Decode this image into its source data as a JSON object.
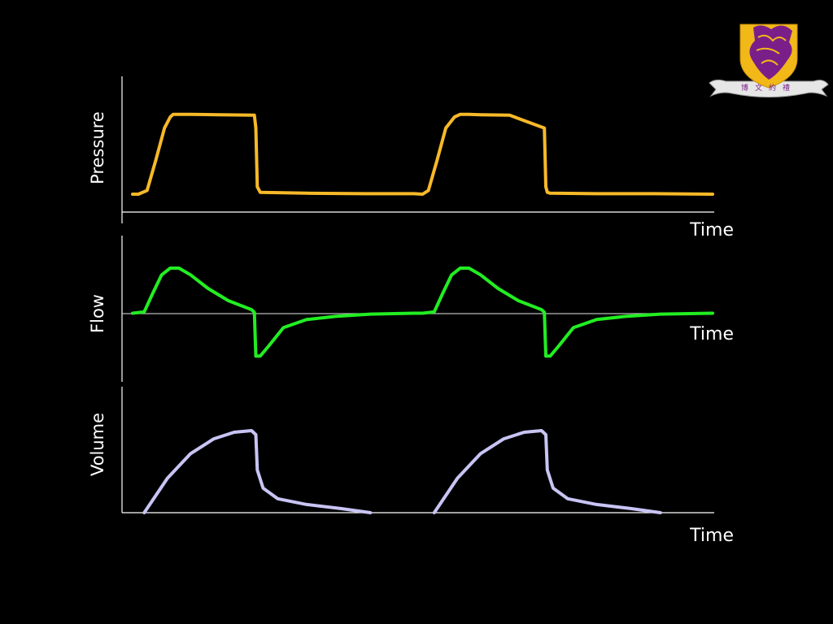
{
  "chart_data": [
    {
      "type": "line",
      "title": "",
      "ylabel": "Pressure",
      "xlabel": "Time",
      "color": "#f7b928",
      "xlim": [
        0,
        2
      ],
      "ylim": [
        0,
        1
      ],
      "grid": false,
      "series": [
        {
          "x": [
            0,
            0.02,
            0.05,
            0.08,
            0.11,
            0.13,
            0.14,
            0.16,
            0.2,
            0.3,
            0.42,
            0.425,
            0.43,
            0.44,
            0.6,
            0.8,
            0.97,
            1.0,
            1.02,
            1.05,
            1.08,
            1.11,
            1.13,
            1.14,
            1.16,
            1.2,
            1.3,
            1.42,
            1.425,
            1.43,
            1.44,
            1.6,
            1.8,
            2.0
          ],
          "y": [
            0.08,
            0.08,
            0.12,
            0.45,
            0.8,
            0.92,
            0.95,
            0.95,
            0.95,
            0.945,
            0.94,
            0.8,
            0.16,
            0.1,
            0.09,
            0.085,
            0.085,
            0.08,
            0.12,
            0.45,
            0.8,
            0.92,
            0.95,
            0.95,
            0.95,
            0.945,
            0.94,
            0.8,
            0.16,
            0.1,
            0.09,
            0.085,
            0.085,
            0.08
          ]
        }
      ]
    },
    {
      "type": "line",
      "title": "",
      "ylabel": "Flow",
      "xlabel": "Time",
      "color": "#22ee22",
      "xlim": [
        0,
        2
      ],
      "ylim": [
        -1,
        1
      ],
      "grid": false,
      "series": [
        {
          "x": [
            0,
            0.04,
            0.07,
            0.1,
            0.13,
            0.16,
            0.2,
            0.26,
            0.33,
            0.41,
            0.42,
            0.425,
            0.44,
            0.47,
            0.52,
            0.6,
            0.7,
            0.82,
            0.97,
            1.0,
            1.04,
            1.07,
            1.1,
            1.13,
            1.16,
            1.2,
            1.26,
            1.33,
            1.41,
            1.42,
            1.425,
            1.44,
            1.47,
            1.52,
            1.6,
            1.7,
            1.82,
            2.0
          ],
          "y": [
            0,
            0.03,
            0.45,
            0.85,
            1.0,
            1.0,
            0.85,
            0.55,
            0.28,
            0.08,
            0.02,
            -0.95,
            -0.95,
            -0.72,
            -0.32,
            -0.14,
            -0.07,
            -0.02,
            0,
            0,
            0.03,
            0.45,
            0.85,
            1.0,
            1.0,
            0.85,
            0.55,
            0.28,
            0.08,
            0.02,
            -0.95,
            -0.95,
            -0.72,
            -0.32,
            -0.14,
            -0.07,
            -0.02,
            0
          ]
        }
      ]
    },
    {
      "type": "line",
      "title": "",
      "ylabel": "Volume",
      "xlabel": "Time",
      "color": "#c8c4f4",
      "xlim": [
        0,
        2
      ],
      "ylim": [
        0,
        1
      ],
      "grid": false,
      "series": [
        {
          "x": [
            0.04,
            0.12,
            0.2,
            0.28,
            0.35,
            0.41,
            0.425,
            0.43,
            0.45,
            0.5,
            0.6,
            0.72,
            0.82
          ],
          "y": [
            0,
            0.42,
            0.72,
            0.9,
            0.98,
            1.0,
            0.95,
            0.52,
            0.3,
            0.17,
            0.1,
            0.05,
            0
          ]
        },
        {
          "x": [
            1.04,
            1.12,
            1.2,
            1.28,
            1.35,
            1.41,
            1.425,
            1.43,
            1.45,
            1.5,
            1.6,
            1.72,
            1.82
          ],
          "y": [
            0,
            0.42,
            0.72,
            0.9,
            0.98,
            1.0,
            0.95,
            0.52,
            0.3,
            0.17,
            0.1,
            0.05,
            0
          ]
        }
      ]
    }
  ],
  "logo": {
    "name": "university-crest",
    "shield_color": "#f2b818",
    "emblem_color": "#7a1f8a",
    "ribbon_text": "博文約禮"
  }
}
